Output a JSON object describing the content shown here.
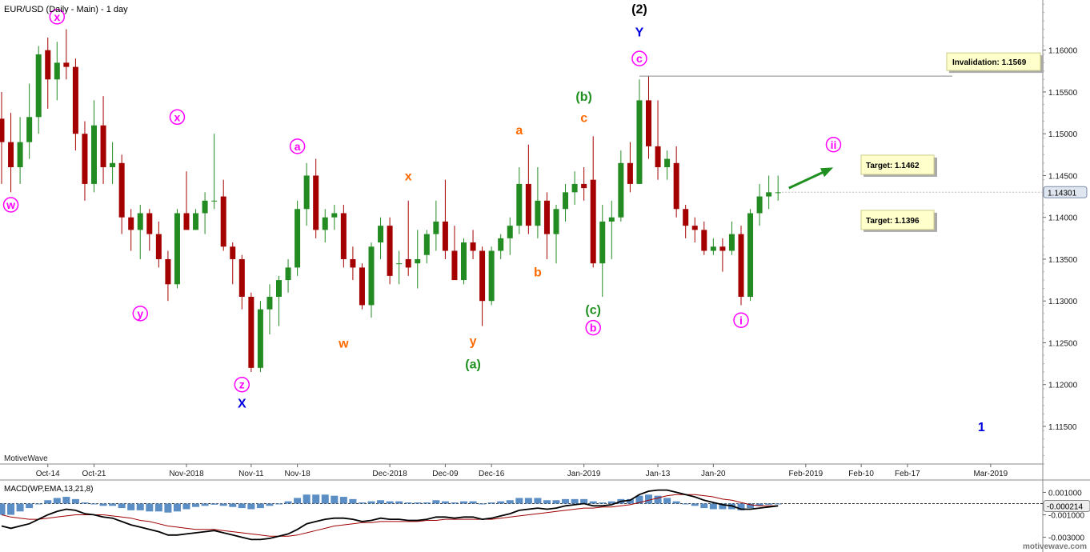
{
  "header": {
    "title": "EUR/USD (Daily - Main) - 1 day",
    "source_tag": "MotiveWave",
    "watermark": "motivewave.com"
  },
  "colors": {
    "bull": "#228b22",
    "bear": "#a50000",
    "magenta": "#ff00ff",
    "orange": "#ff6a00",
    "green": "#1f8f1f",
    "blue": "#0000e0",
    "black": "#000000",
    "macd_hist": "#5b8ec4",
    "macd_line": "#000000",
    "signal_line": "#a00000",
    "target_box": "#ffffcc"
  },
  "chart_data": {
    "type": "candlestick",
    "title": "EUR/USD (Daily - Main) - 1 day",
    "ylim": [
      1.1105,
      1.166
    ],
    "price_ticks": [
      "1.16000",
      "1.15500",
      "1.15000",
      "1.14500",
      "1.14000",
      "1.13500",
      "1.13000",
      "1.12500",
      "1.12000",
      "1.11500"
    ],
    "current_price": "1.14301",
    "date_ticks": [
      "Oct-14",
      "Oct-21",
      "Nov-2018",
      "Nov-11",
      "Nov-18",
      "Dec-2018",
      "Dec-09",
      "Dec-16",
      "Jan-2019",
      "Jan-13",
      "Jan-20",
      "Feb-2019",
      "Feb-10",
      "Feb-17",
      "Mar-2019"
    ],
    "candles": [
      {
        "o": 1.1518,
        "h": 1.155,
        "l": 1.144,
        "c": 1.149
      },
      {
        "o": 1.149,
        "h": 1.1525,
        "l": 1.143,
        "c": 1.146
      },
      {
        "o": 1.146,
        "h": 1.152,
        "l": 1.144,
        "c": 1.149
      },
      {
        "o": 1.149,
        "h": 1.156,
        "l": 1.147,
        "c": 1.152
      },
      {
        "o": 1.152,
        "h": 1.1605,
        "l": 1.15,
        "c": 1.1595
      },
      {
        "o": 1.16,
        "h": 1.1615,
        "l": 1.153,
        "c": 1.1565
      },
      {
        "o": 1.1565,
        "h": 1.161,
        "l": 1.154,
        "c": 1.1585
      },
      {
        "o": 1.1585,
        "h": 1.1625,
        "l": 1.1565,
        "c": 1.158
      },
      {
        "o": 1.158,
        "h": 1.159,
        "l": 1.148,
        "c": 1.15
      },
      {
        "o": 1.15,
        "h": 1.1515,
        "l": 1.142,
        "c": 1.144
      },
      {
        "o": 1.144,
        "h": 1.154,
        "l": 1.143,
        "c": 1.151
      },
      {
        "o": 1.151,
        "h": 1.1545,
        "l": 1.144,
        "c": 1.146
      },
      {
        "o": 1.146,
        "h": 1.149,
        "l": 1.144,
        "c": 1.1465
      },
      {
        "o": 1.1465,
        "h": 1.1475,
        "l": 1.138,
        "c": 1.14
      },
      {
        "o": 1.14,
        "h": 1.141,
        "l": 1.136,
        "c": 1.1385
      },
      {
        "o": 1.1385,
        "h": 1.1415,
        "l": 1.135,
        "c": 1.1405
      },
      {
        "o": 1.1405,
        "h": 1.141,
        "l": 1.136,
        "c": 1.138
      },
      {
        "o": 1.138,
        "h": 1.1395,
        "l": 1.134,
        "c": 1.135
      },
      {
        "o": 1.135,
        "h": 1.136,
        "l": 1.13,
        "c": 1.132
      },
      {
        "o": 1.132,
        "h": 1.141,
        "l": 1.1315,
        "c": 1.1405
      },
      {
        "o": 1.1405,
        "h": 1.1455,
        "l": 1.139,
        "c": 1.1385
      },
      {
        "o": 1.1385,
        "h": 1.141,
        "l": 1.1385,
        "c": 1.1405
      },
      {
        "o": 1.1405,
        "h": 1.143,
        "l": 1.138,
        "c": 1.142
      },
      {
        "o": 1.142,
        "h": 1.15,
        "l": 1.141,
        "c": 1.142
      },
      {
        "o": 1.1425,
        "h": 1.1445,
        "l": 1.136,
        "c": 1.1365
      },
      {
        "o": 1.1365,
        "h": 1.137,
        "l": 1.132,
        "c": 1.135
      },
      {
        "o": 1.135,
        "h": 1.1355,
        "l": 1.129,
        "c": 1.1305
      },
      {
        "o": 1.1305,
        "h": 1.131,
        "l": 1.1215,
        "c": 1.122
      },
      {
        "o": 1.122,
        "h": 1.13,
        "l": 1.1215,
        "c": 1.129
      },
      {
        "o": 1.129,
        "h": 1.132,
        "l": 1.126,
        "c": 1.1305
      },
      {
        "o": 1.1305,
        "h": 1.133,
        "l": 1.127,
        "c": 1.1325
      },
      {
        "o": 1.1325,
        "h": 1.135,
        "l": 1.131,
        "c": 1.134
      },
      {
        "o": 1.134,
        "h": 1.142,
        "l": 1.133,
        "c": 1.141
      },
      {
        "o": 1.141,
        "h": 1.1465,
        "l": 1.139,
        "c": 1.145
      },
      {
        "o": 1.145,
        "h": 1.147,
        "l": 1.1375,
        "c": 1.1385
      },
      {
        "o": 1.1385,
        "h": 1.141,
        "l": 1.137,
        "c": 1.14
      },
      {
        "o": 1.14,
        "h": 1.1415,
        "l": 1.1385,
        "c": 1.1405
      },
      {
        "o": 1.1405,
        "h": 1.1415,
        "l": 1.134,
        "c": 1.135
      },
      {
        "o": 1.135,
        "h": 1.1365,
        "l": 1.1325,
        "c": 1.134
      },
      {
        "o": 1.134,
        "h": 1.1345,
        "l": 1.129,
        "c": 1.1295
      },
      {
        "o": 1.1295,
        "h": 1.137,
        "l": 1.128,
        "c": 1.1365
      },
      {
        "o": 1.137,
        "h": 1.14,
        "l": 1.135,
        "c": 1.139
      },
      {
        "o": 1.139,
        "h": 1.14,
        "l": 1.132,
        "c": 1.133
      },
      {
        "o": 1.1345,
        "h": 1.136,
        "l": 1.132,
        "c": 1.1345
      },
      {
        "o": 1.135,
        "h": 1.142,
        "l": 1.133,
        "c": 1.134
      },
      {
        "o": 1.1345,
        "h": 1.1385,
        "l": 1.1315,
        "c": 1.135
      },
      {
        "o": 1.1355,
        "h": 1.1385,
        "l": 1.1345,
        "c": 1.138
      },
      {
        "o": 1.138,
        "h": 1.142,
        "l": 1.136,
        "c": 1.1395
      },
      {
        "o": 1.1395,
        "h": 1.1445,
        "l": 1.135,
        "c": 1.136
      },
      {
        "o": 1.136,
        "h": 1.139,
        "l": 1.133,
        "c": 1.1325
      },
      {
        "o": 1.1325,
        "h": 1.1375,
        "l": 1.132,
        "c": 1.137
      },
      {
        "o": 1.137,
        "h": 1.1385,
        "l": 1.135,
        "c": 1.136
      },
      {
        "o": 1.136,
        "h": 1.1365,
        "l": 1.127,
        "c": 1.13
      },
      {
        "o": 1.13,
        "h": 1.1365,
        "l": 1.1295,
        "c": 1.136
      },
      {
        "o": 1.136,
        "h": 1.138,
        "l": 1.135,
        "c": 1.1375
      },
      {
        "o": 1.1375,
        "h": 1.14,
        "l": 1.1355,
        "c": 1.139
      },
      {
        "o": 1.139,
        "h": 1.146,
        "l": 1.138,
        "c": 1.144
      },
      {
        "o": 1.144,
        "h": 1.1487,
        "l": 1.138,
        "c": 1.139
      },
      {
        "o": 1.139,
        "h": 1.146,
        "l": 1.1375,
        "c": 1.142
      },
      {
        "o": 1.142,
        "h": 1.143,
        "l": 1.135,
        "c": 1.138
      },
      {
        "o": 1.138,
        "h": 1.1415,
        "l": 1.1345,
        "c": 1.141
      },
      {
        "o": 1.141,
        "h": 1.144,
        "l": 1.1395,
        "c": 1.143
      },
      {
        "o": 1.143,
        "h": 1.1455,
        "l": 1.1415,
        "c": 1.144
      },
      {
        "o": 1.144,
        "h": 1.146,
        "l": 1.142,
        "c": 1.1435
      },
      {
        "o": 1.1445,
        "h": 1.1497,
        "l": 1.134,
        "c": 1.1345
      },
      {
        "o": 1.1345,
        "h": 1.1415,
        "l": 1.1305,
        "c": 1.1395
      },
      {
        "o": 1.1395,
        "h": 1.142,
        "l": 1.135,
        "c": 1.14
      },
      {
        "o": 1.14,
        "h": 1.148,
        "l": 1.1395,
        "c": 1.1465
      },
      {
        "o": 1.1465,
        "h": 1.149,
        "l": 1.143,
        "c": 1.144
      },
      {
        "o": 1.144,
        "h": 1.1565,
        "l": 1.144,
        "c": 1.154
      },
      {
        "o": 1.154,
        "h": 1.1569,
        "l": 1.147,
        "c": 1.1485
      },
      {
        "o": 1.1485,
        "h": 1.154,
        "l": 1.1445,
        "c": 1.146
      },
      {
        "o": 1.146,
        "h": 1.148,
        "l": 1.1445,
        "c": 1.147
      },
      {
        "o": 1.1465,
        "h": 1.1485,
        "l": 1.14,
        "c": 1.141
      },
      {
        "o": 1.141,
        "h": 1.1415,
        "l": 1.1375,
        "c": 1.139
      },
      {
        "o": 1.139,
        "h": 1.14,
        "l": 1.137,
        "c": 1.1385
      },
      {
        "o": 1.1385,
        "h": 1.1395,
        "l": 1.1355,
        "c": 1.136
      },
      {
        "o": 1.136,
        "h": 1.1375,
        "l": 1.1355,
        "c": 1.1365
      },
      {
        "o": 1.1365,
        "h": 1.1375,
        "l": 1.1335,
        "c": 1.136
      },
      {
        "o": 1.136,
        "h": 1.1395,
        "l": 1.1355,
        "c": 1.138
      },
      {
        "o": 1.138,
        "h": 1.139,
        "l": 1.1295,
        "c": 1.1305
      },
      {
        "o": 1.1305,
        "h": 1.141,
        "l": 1.13,
        "c": 1.1405
      },
      {
        "o": 1.1405,
        "h": 1.144,
        "l": 1.139,
        "c": 1.1425
      },
      {
        "o": 1.1425,
        "h": 1.145,
        "l": 1.141,
        "c": 1.143
      },
      {
        "o": 1.143,
        "h": 1.145,
        "l": 1.142,
        "c": 1.143
      }
    ],
    "invalidation": {
      "label": "Invalidation:  1.1569",
      "price": 1.1569
    },
    "targets": [
      {
        "label": "Target:  1.1462",
        "price": 1.1462
      },
      {
        "label": "Target:  1.1396",
        "price": 1.1396
      }
    ],
    "wave_labels": [
      {
        "text": "x",
        "style": "circle",
        "color": "magenta",
        "bar": 6,
        "price": 1.164
      },
      {
        "text": "w",
        "style": "circle",
        "color": "magenta",
        "bar": 1,
        "price": 1.1415
      },
      {
        "text": "x",
        "style": "circle",
        "color": "magenta",
        "bar": 19,
        "price": 1.152
      },
      {
        "text": "y",
        "style": "circle",
        "color": "magenta",
        "bar": 15,
        "price": 1.1285
      },
      {
        "text": "z",
        "style": "circle",
        "color": "magenta",
        "bar": 26,
        "price": 1.12
      },
      {
        "text": "X",
        "style": "plain",
        "color": "blue",
        "bar": 26,
        "price": 1.1178
      },
      {
        "text": "a",
        "style": "circle",
        "color": "magenta",
        "bar": 32,
        "price": 1.1485
      },
      {
        "text": "x",
        "style": "plain",
        "color": "orange",
        "bar": 44,
        "price": 1.145
      },
      {
        "text": "w",
        "style": "plain",
        "color": "orange",
        "bar": 37,
        "price": 1.125
      },
      {
        "text": "y",
        "style": "plain",
        "color": "orange",
        "bar": 51,
        "price": 1.1253
      },
      {
        "text": "(a)",
        "style": "plain",
        "color": "green",
        "bar": 51,
        "price": 1.1225
      },
      {
        "text": "a",
        "style": "plain",
        "color": "orange",
        "bar": 56,
        "price": 1.1505
      },
      {
        "text": "b",
        "style": "plain",
        "color": "orange",
        "bar": 58,
        "price": 1.1335
      },
      {
        "text": "(b)",
        "style": "plain",
        "color": "green",
        "bar": 63,
        "price": 1.1545
      },
      {
        "text": "c",
        "style": "plain",
        "color": "orange",
        "bar": 63,
        "price": 1.152
      },
      {
        "text": "(c)",
        "style": "plain",
        "color": "green",
        "bar": 64,
        "price": 1.129
      },
      {
        "text": "b",
        "style": "circle",
        "color": "magenta",
        "bar": 64,
        "price": 1.1268
      },
      {
        "text": "(2)",
        "style": "plain",
        "color": "black",
        "bar": 69,
        "price": 1.165
      },
      {
        "text": "Y",
        "style": "plain",
        "color": "blue",
        "bar": 69,
        "price": 1.1622
      },
      {
        "text": "c",
        "style": "circle",
        "color": "magenta",
        "bar": 69,
        "price": 1.159
      },
      {
        "text": "i",
        "style": "circle",
        "color": "magenta",
        "bar": 80,
        "price": 1.1277
      },
      {
        "text": "ii",
        "style": "circle",
        "color": "magenta",
        "bar": 90,
        "price": 1.1487
      },
      {
        "text": "1",
        "style": "plain",
        "color": "blue",
        "bar": 106,
        "price": 1.115
      }
    ],
    "macd": {
      "label": "MACD(WP,EMA,13,21,8)",
      "ylim": [
        -0.0036,
        0.0021
      ],
      "ticks": [
        "0.001000",
        "-0.001000",
        "-0.003000"
      ],
      "current": "-0.000214",
      "macd_line": [
        -0.002,
        -0.0022,
        -0.002,
        -0.0018,
        -0.0014,
        -0.001,
        -0.0007,
        -0.0005,
        -0.0006,
        -0.0009,
        -0.001,
        -0.0012,
        -0.0013,
        -0.0016,
        -0.0019,
        -0.0021,
        -0.0023,
        -0.0025,
        -0.0028,
        -0.0028,
        -0.0027,
        -0.0026,
        -0.0025,
        -0.0024,
        -0.0026,
        -0.0028,
        -0.003,
        -0.0032,
        -0.0032,
        -0.0031,
        -0.0029,
        -0.0027,
        -0.0023,
        -0.0018,
        -0.0016,
        -0.0014,
        -0.0013,
        -0.0013,
        -0.0014,
        -0.0016,
        -0.0015,
        -0.0013,
        -0.0014,
        -0.0014,
        -0.0015,
        -0.0015,
        -0.0014,
        -0.0012,
        -0.0012,
        -0.0013,
        -0.0012,
        -0.0012,
        -0.0014,
        -0.0013,
        -0.0011,
        -0.0009,
        -0.0006,
        -0.0005,
        -0.0004,
        -0.0005,
        -0.0004,
        -0.0002,
        -0.0001,
        0.0,
        -0.0002,
        -0.0002,
        -0.0001,
        0.0002,
        0.0003,
        0.0008,
        0.0011,
        0.0012,
        0.0012,
        0.001,
        0.0008,
        0.0006,
        0.0003,
        0.0001,
        -0.0001,
        -0.0002,
        -0.0005,
        -0.0005,
        -0.0004,
        -0.0003,
        -0.0002
      ],
      "signal_line": [
        -0.001,
        -0.0012,
        -0.0013,
        -0.0014,
        -0.0014,
        -0.0013,
        -0.0012,
        -0.0011,
        -0.001,
        -0.001,
        -0.001,
        -0.001,
        -0.0011,
        -0.0012,
        -0.0013,
        -0.0015,
        -0.0016,
        -0.0018,
        -0.002,
        -0.0021,
        -0.0022,
        -0.0023,
        -0.0023,
        -0.0023,
        -0.0024,
        -0.0025,
        -0.0026,
        -0.0027,
        -0.0028,
        -0.0029,
        -0.0029,
        -0.0029,
        -0.0028,
        -0.0026,
        -0.0024,
        -0.0022,
        -0.002,
        -0.0019,
        -0.0018,
        -0.0017,
        -0.0017,
        -0.0016,
        -0.0016,
        -0.0016,
        -0.0016,
        -0.0016,
        -0.0015,
        -0.0015,
        -0.0014,
        -0.0014,
        -0.0014,
        -0.0014,
        -0.0014,
        -0.0014,
        -0.0013,
        -0.0012,
        -0.0011,
        -0.001,
        -0.0009,
        -0.0008,
        -0.0007,
        -0.0006,
        -0.0005,
        -0.0004,
        -0.0004,
        -0.0003,
        -0.0003,
        -0.0002,
        -0.0001,
        0.0001,
        0.0003,
        0.0005,
        0.0007,
        0.0008,
        0.0008,
        0.0008,
        0.0007,
        0.0006,
        0.0004,
        0.0003,
        0.0001,
        -0.0001,
        -0.0002,
        -0.0002,
        -0.0002
      ]
    }
  }
}
